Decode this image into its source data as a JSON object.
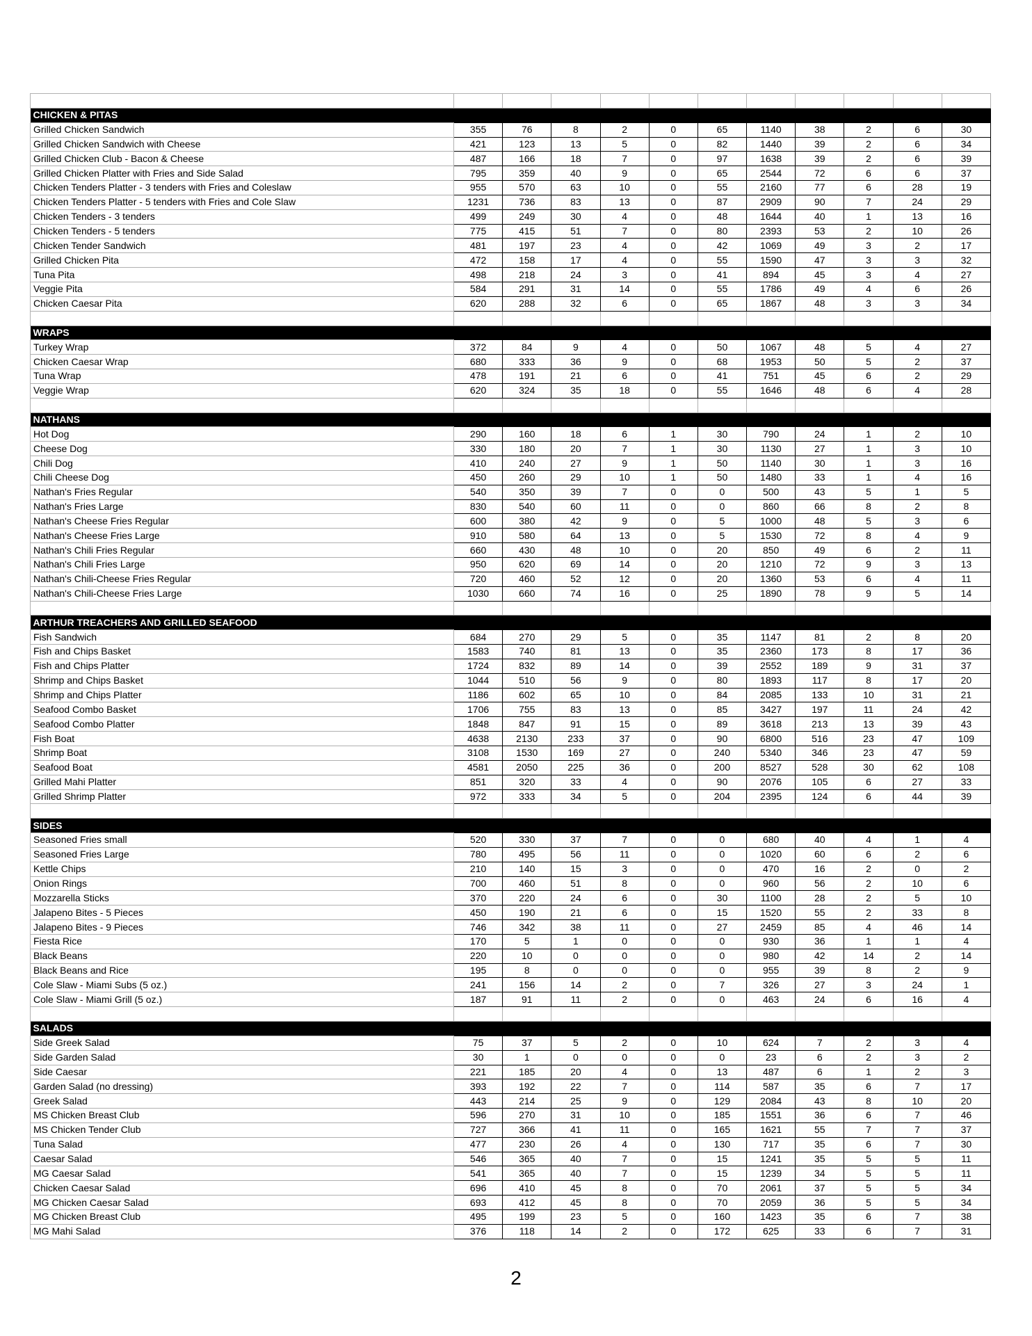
{
  "page_number": "2",
  "sections": [
    {
      "title": "CHICKEN & PITAS",
      "rows": [
        [
          "Grilled Chicken Sandwich",
          355,
          76,
          8,
          2,
          0,
          65,
          1140,
          38,
          2,
          6,
          30
        ],
        [
          "Grilled Chicken Sandwich with Cheese",
          421,
          123,
          13,
          5,
          0,
          82,
          1440,
          39,
          2,
          6,
          34
        ],
        [
          "Grilled Chicken Club - Bacon & Cheese",
          487,
          166,
          18,
          7,
          0,
          97,
          1638,
          39,
          2,
          6,
          39
        ],
        [
          "Grilled Chicken Platter with Fries and Side Salad",
          795,
          359,
          40,
          9,
          0,
          65,
          2544,
          72,
          6,
          6,
          37
        ],
        [
          "Chicken Tenders Platter - 3 tenders with Fries and Coleslaw",
          955,
          570,
          63,
          10,
          0,
          55,
          2160,
          77,
          6,
          28,
          19
        ],
        [
          "Chicken Tenders Platter - 5 tenders with Fries and Cole Slaw",
          1231,
          736,
          83,
          13,
          0,
          87,
          2909,
          90,
          7,
          24,
          29
        ],
        [
          "Chicken Tenders - 3 tenders",
          499,
          249,
          30,
          4,
          0,
          48,
          1644,
          40,
          1,
          13,
          16
        ],
        [
          "Chicken Tenders - 5 tenders",
          775,
          415,
          51,
          7,
          0,
          80,
          2393,
          53,
          2,
          10,
          26
        ],
        [
          "Chicken Tender Sandwich",
          481,
          197,
          23,
          4,
          0,
          42,
          1069,
          49,
          3,
          2,
          17
        ],
        [
          "Grilled Chicken Pita",
          472,
          158,
          17,
          4,
          0,
          55,
          1590,
          47,
          3,
          3,
          32
        ],
        [
          "Tuna Pita",
          498,
          218,
          24,
          3,
          0,
          41,
          894,
          45,
          3,
          4,
          27
        ],
        [
          "Veggie Pita",
          584,
          291,
          31,
          14,
          0,
          55,
          1786,
          49,
          4,
          6,
          26
        ],
        [
          "Chicken Caesar Pita",
          620,
          288,
          32,
          6,
          0,
          65,
          1867,
          48,
          3,
          3,
          34
        ]
      ]
    },
    {
      "title": "WRAPS",
      "rows": [
        [
          "Turkey Wrap",
          372,
          84,
          9,
          4,
          0,
          50,
          1067,
          48,
          5,
          4,
          27
        ],
        [
          "Chicken Caesar Wrap",
          680,
          333,
          36,
          9,
          0,
          68,
          1953,
          50,
          5,
          2,
          37
        ],
        [
          "Tuna Wrap",
          478,
          191,
          21,
          6,
          0,
          41,
          751,
          45,
          6,
          2,
          29
        ],
        [
          "Veggie Wrap",
          620,
          324,
          35,
          18,
          0,
          55,
          1646,
          48,
          6,
          4,
          28
        ]
      ]
    },
    {
      "title": "NATHANS",
      "rows": [
        [
          "Hot Dog",
          290,
          160,
          18,
          6,
          1,
          30,
          790,
          24,
          1,
          2,
          10
        ],
        [
          "Cheese Dog",
          330,
          180,
          20,
          7,
          1,
          30,
          1130,
          27,
          1,
          3,
          10
        ],
        [
          "Chili Dog",
          410,
          240,
          27,
          9,
          1,
          50,
          1140,
          30,
          1,
          3,
          16
        ],
        [
          "Chili Cheese Dog",
          450,
          260,
          29,
          10,
          1,
          50,
          1480,
          33,
          1,
          4,
          16
        ],
        [
          "Nathan's Fries Regular",
          540,
          350,
          39,
          7,
          0,
          0,
          500,
          43,
          5,
          1,
          5
        ],
        [
          "Nathan's Fries Large",
          830,
          540,
          60,
          11,
          0,
          0,
          860,
          66,
          8,
          2,
          8
        ],
        [
          "Nathan's Cheese Fries Regular",
          600,
          380,
          42,
          9,
          0,
          5,
          1000,
          48,
          5,
          3,
          6
        ],
        [
          "Nathan's Cheese Fries Large",
          910,
          580,
          64,
          13,
          0,
          5,
          1530,
          72,
          8,
          4,
          9
        ],
        [
          "Nathan's Chili Fries Regular",
          660,
          430,
          48,
          10,
          0,
          20,
          850,
          49,
          6,
          2,
          11
        ],
        [
          "Nathan's Chili Fries Large",
          950,
          620,
          69,
          14,
          0,
          20,
          1210,
          72,
          9,
          3,
          13
        ],
        [
          "Nathan's Chili-Cheese Fries Regular",
          720,
          460,
          52,
          12,
          0,
          20,
          1360,
          53,
          6,
          4,
          11
        ],
        [
          "Nathan's Chili-Cheese Fries Large",
          1030,
          660,
          74,
          16,
          0,
          25,
          1890,
          78,
          9,
          5,
          14
        ]
      ]
    },
    {
      "title": "ARTHUR TREACHERS AND GRILLED SEAFOOD",
      "rows": [
        [
          "Fish Sandwich",
          684,
          270,
          29,
          5,
          0,
          35,
          1147,
          81,
          2,
          8,
          20
        ],
        [
          "Fish and Chips Basket",
          1583,
          740,
          81,
          13,
          0,
          35,
          2360,
          173,
          8,
          17,
          36
        ],
        [
          "Fish and Chips Platter",
          1724,
          832,
          89,
          14,
          0,
          39,
          2552,
          189,
          9,
          31,
          37
        ],
        [
          "Shrimp and Chips Basket",
          1044,
          510,
          56,
          9,
          0,
          80,
          1893,
          117,
          8,
          17,
          20
        ],
        [
          "Shrimp and Chips Platter",
          1186,
          602,
          65,
          10,
          0,
          84,
          2085,
          133,
          10,
          31,
          21
        ],
        [
          "Seafood Combo Basket",
          1706,
          755,
          83,
          13,
          0,
          85,
          3427,
          197,
          11,
          24,
          42
        ],
        [
          "Seafood Combo Platter",
          1848,
          847,
          91,
          15,
          0,
          89,
          3618,
          213,
          13,
          39,
          43
        ],
        [
          "Fish Boat",
          4638,
          2130,
          233,
          37,
          0,
          90,
          6800,
          516,
          23,
          47,
          109
        ],
        [
          "Shrimp Boat",
          3108,
          1530,
          169,
          27,
          0,
          240,
          5340,
          346,
          23,
          47,
          59
        ],
        [
          "Seafood Boat",
          4581,
          2050,
          225,
          36,
          0,
          200,
          8527,
          528,
          30,
          62,
          108
        ],
        [
          "Grilled Mahi Platter",
          851,
          320,
          33,
          4,
          0,
          90,
          2076,
          105,
          6,
          27,
          33
        ],
        [
          "Grilled Shrimp Platter",
          972,
          333,
          34,
          5,
          0,
          204,
          2395,
          124,
          6,
          44,
          39
        ]
      ]
    },
    {
      "title": "SIDES",
      "rows": [
        [
          "Seasoned Fries small",
          520,
          330,
          37,
          7,
          0,
          0,
          680,
          40,
          4,
          1,
          4
        ],
        [
          "Seasoned Fries Large",
          780,
          495,
          56,
          11,
          0,
          0,
          1020,
          60,
          6,
          2,
          6
        ],
        [
          "Kettle Chips",
          210,
          140,
          15,
          3,
          0,
          0,
          470,
          16,
          2,
          0,
          2
        ],
        [
          "Onion Rings",
          700,
          460,
          51,
          8,
          0,
          0,
          960,
          56,
          2,
          10,
          6
        ],
        [
          "Mozzarella Sticks",
          370,
          220,
          24,
          6,
          0,
          30,
          1100,
          28,
          2,
          5,
          10
        ],
        [
          "Jalapeno Bites - 5 Pieces",
          450,
          190,
          21,
          6,
          0,
          15,
          1520,
          55,
          2,
          33,
          8
        ],
        [
          "Jalapeno Bites - 9 Pieces",
          746,
          342,
          38,
          11,
          0,
          27,
          2459,
          85,
          4,
          46,
          14
        ],
        [
          "Fiesta Rice",
          170,
          5,
          1,
          0,
          0,
          0,
          930,
          36,
          1,
          1,
          4
        ],
        [
          "Black Beans",
          220,
          10,
          0,
          0,
          0,
          0,
          980,
          42,
          14,
          2,
          14
        ],
        [
          "Black Beans and Rice",
          195,
          8,
          0,
          0,
          0,
          0,
          955,
          39,
          8,
          2,
          9
        ],
        [
          "Cole Slaw - Miami Subs (5 oz.)",
          241,
          156,
          14,
          2,
          0,
          7,
          326,
          27,
          3,
          24,
          1
        ],
        [
          "Cole Slaw - Miami Grill (5 oz.)",
          187,
          91,
          11,
          2,
          0,
          0,
          463,
          24,
          6,
          16,
          4
        ]
      ]
    },
    {
      "title": "SALADS",
      "rows": [
        [
          "Side Greek Salad",
          75,
          37,
          5,
          2,
          0,
          10,
          624,
          7,
          2,
          3,
          4
        ],
        [
          "Side Garden Salad",
          30,
          1,
          0,
          0,
          0,
          0,
          23,
          6,
          2,
          3,
          2
        ],
        [
          "Side Caesar",
          221,
          185,
          20,
          4,
          0,
          13,
          487,
          6,
          1,
          2,
          3
        ],
        [
          "Garden Salad (no dressing)",
          393,
          192,
          22,
          7,
          0,
          114,
          587,
          35,
          6,
          7,
          17
        ],
        [
          "Greek Salad",
          443,
          214,
          25,
          9,
          0,
          129,
          2084,
          43,
          8,
          10,
          20
        ],
        [
          "MS Chicken Breast Club",
          596,
          270,
          31,
          10,
          0,
          185,
          1551,
          36,
          6,
          7,
          46
        ],
        [
          "MS Chicken Tender Club",
          727,
          366,
          41,
          11,
          0,
          165,
          1621,
          55,
          7,
          7,
          37
        ],
        [
          "Tuna Salad",
          477,
          230,
          26,
          4,
          0,
          130,
          717,
          35,
          6,
          7,
          30
        ],
        [
          "Caesar Salad",
          546,
          365,
          40,
          7,
          0,
          15,
          1241,
          35,
          5,
          5,
          11
        ],
        [
          "MG Caesar Salad",
          541,
          365,
          40,
          7,
          0,
          15,
          1239,
          34,
          5,
          5,
          11
        ],
        [
          "Chicken Caesar Salad",
          696,
          410,
          45,
          8,
          0,
          70,
          2061,
          37,
          5,
          5,
          34
        ],
        [
          "MG Chicken Caesar Salad",
          693,
          412,
          45,
          8,
          0,
          70,
          2059,
          36,
          5,
          5,
          34
        ],
        [
          "MG Chicken Breast Club",
          495,
          199,
          23,
          5,
          0,
          160,
          1423,
          35,
          6,
          7,
          38
        ],
        [
          "MG Mahi Salad",
          376,
          118,
          14,
          2,
          0,
          172,
          625,
          33,
          6,
          7,
          31
        ]
      ]
    }
  ]
}
